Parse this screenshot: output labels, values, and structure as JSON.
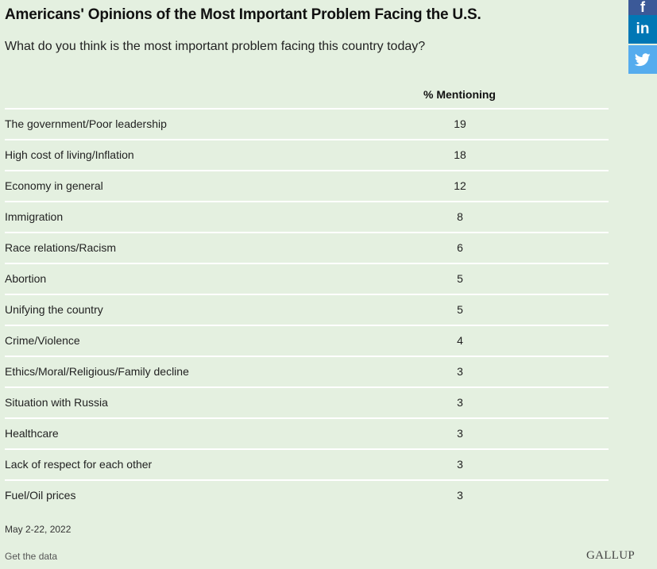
{
  "header": {
    "title": "Americans' Opinions of the Most Important Problem Facing the U.S.",
    "subtitle": "What do you think is the most important problem facing this country today?"
  },
  "share": {
    "facebook_glyph": "f",
    "linkedin_glyph": "in",
    "icons": [
      "facebook-icon",
      "linkedin-icon",
      "twitter-icon"
    ]
  },
  "chart_data": {
    "type": "table",
    "title": "Americans' Opinions of the Most Important Problem Facing the U.S.",
    "subtitle": "What do you think is the most important problem facing this country today?",
    "column_header": "% Mentioning",
    "rows": [
      {
        "category": "The government/Poor leadership",
        "value": "19"
      },
      {
        "category": "High cost of living/Inflation",
        "value": "18"
      },
      {
        "category": "Economy in general",
        "value": "12"
      },
      {
        "category": "Immigration",
        "value": "8"
      },
      {
        "category": "Race relations/Racism",
        "value": "6"
      },
      {
        "category": "Abortion",
        "value": "5"
      },
      {
        "category": "Unifying the country",
        "value": "5"
      },
      {
        "category": "Crime/Violence",
        "value": "4"
      },
      {
        "category": "Ethics/Moral/Religious/Family decline",
        "value": "3"
      },
      {
        "category": "Situation with Russia",
        "value": "3"
      },
      {
        "category": "Healthcare",
        "value": "3"
      },
      {
        "category": "Lack of respect for each other",
        "value": "3"
      },
      {
        "category": "Fuel/Oil prices",
        "value": "3"
      }
    ]
  },
  "footer": {
    "date": "May 2-22, 2022",
    "get_data": "Get the data",
    "brand": "GALLUP"
  },
  "colors": {
    "background": "#e4f0e0",
    "divider": "#ffffff",
    "facebook": "#3b5998",
    "linkedin": "#0077b5",
    "twitter": "#55acee"
  }
}
